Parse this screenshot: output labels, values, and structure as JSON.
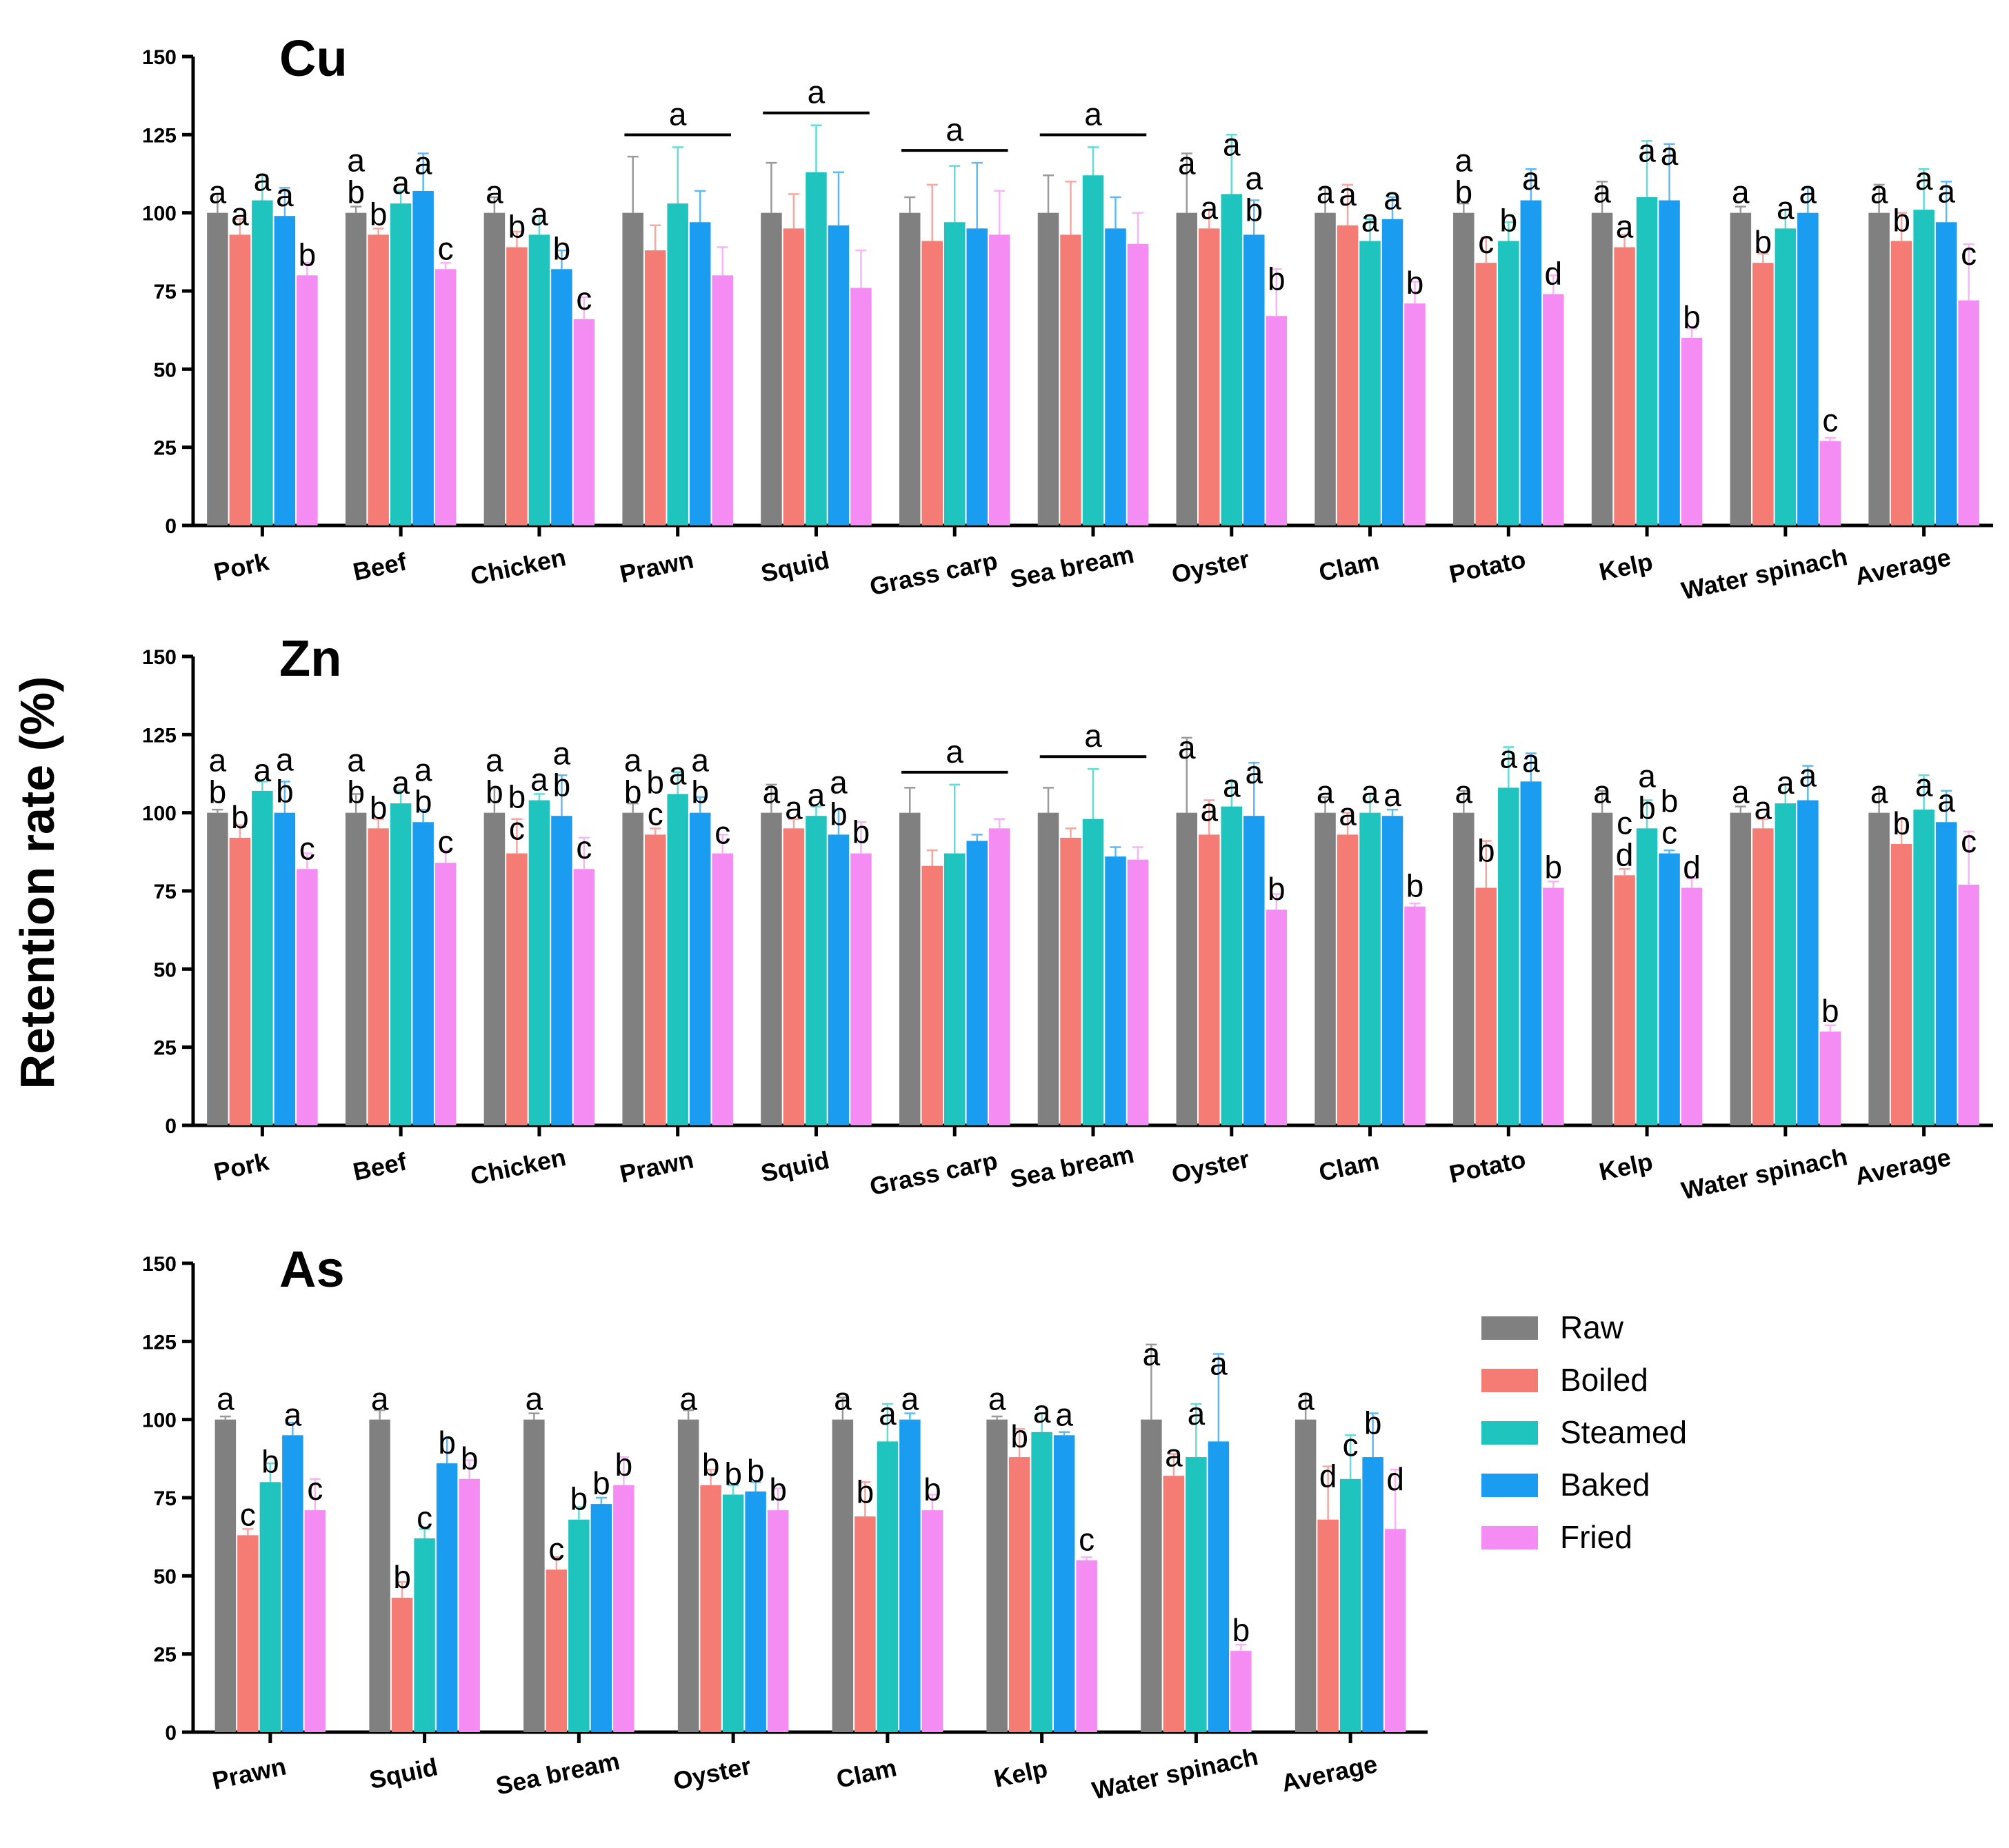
{
  "ylabel": "Retention rate (%)",
  "legend": [
    {
      "name": "Raw",
      "color": "#808080"
    },
    {
      "name": "Boiled",
      "color": "#f47c74"
    },
    {
      "name": "Steamed",
      "color": "#1fc4bf"
    },
    {
      "name": "Baked",
      "color": "#1a9cf0"
    },
    {
      "name": "Fried",
      "color": "#f58cf3"
    }
  ],
  "chart_data": [
    {
      "type": "bar",
      "title": "Cu",
      "ylim": [
        0,
        150
      ],
      "yticks": [
        "0",
        "25",
        "50",
        "75",
        "100",
        "125",
        "150"
      ],
      "categories": [
        "Pork",
        "Beef",
        "Chicken",
        "Prawn",
        "Squid",
        "Grass carp",
        "Sea bream",
        "Oyster",
        "Clam",
        "Potato",
        "Kelp",
        "Water spinach",
        "Average"
      ],
      "series": [
        {
          "name": "Raw",
          "values": [
            100,
            100,
            100,
            100,
            100,
            100,
            100,
            100,
            100,
            100,
            100,
            100,
            100
          ],
          "errors": [
            6,
            2,
            5,
            18,
            16,
            5,
            12,
            19,
            8,
            3,
            10,
            2,
            9
          ]
        },
        {
          "name": "Boiled",
          "values": [
            93,
            93,
            89,
            88,
            95,
            91,
            93,
            95,
            96,
            84,
            89,
            84,
            91
          ],
          "errors": [
            5,
            2,
            5,
            8,
            11,
            18,
            17,
            6,
            13,
            8,
            4,
            3,
            9
          ]
        },
        {
          "name": "Steamed",
          "values": [
            104,
            103,
            93,
            103,
            113,
            97,
            112,
            106,
            91,
            91,
            105,
            95,
            101
          ],
          "errors": [
            8,
            4,
            6,
            18,
            15,
            18,
            9,
            19,
            7,
            6,
            18,
            6,
            13
          ]
        },
        {
          "name": "Baked",
          "values": [
            99,
            107,
            82,
            97,
            96,
            95,
            95,
            93,
            98,
            104,
            104,
            100,
            97
          ],
          "errors": [
            9,
            12,
            6,
            10,
            17,
            21,
            10,
            11,
            7,
            10,
            18,
            8,
            13
          ]
        },
        {
          "name": "Fried",
          "values": [
            80,
            82,
            66,
            80,
            76,
            93,
            90,
            67,
            71,
            74,
            60,
            27,
            72
          ],
          "errors": [
            4,
            2,
            7,
            9,
            12,
            14,
            10,
            15,
            7,
            6,
            3,
            1,
            18
          ]
        }
      ],
      "significance": [
        [
          "a",
          "a",
          "a",
          "a",
          "b"
        ],
        [
          "ab",
          "b",
          "a",
          "a",
          "c"
        ],
        [
          "a",
          "b",
          "a",
          "b",
          "c"
        ],
        [
          "a",
          "a",
          "a",
          "a",
          "a"
        ],
        [
          "a",
          "a",
          "a",
          "a",
          "a"
        ],
        [
          "a",
          "a",
          "a",
          "a",
          "a"
        ],
        [
          "a",
          "a",
          "a",
          "a",
          "a"
        ],
        [
          "a",
          "a",
          "a",
          "ab",
          "b"
        ],
        [
          "a",
          "a",
          "a",
          "a",
          "b"
        ],
        [
          "ab",
          "c",
          "b",
          "a",
          "d"
        ],
        [
          "a",
          "a",
          "a",
          "a",
          "b"
        ],
        [
          "a",
          "b",
          "a",
          "a",
          "c"
        ],
        [
          "a",
          "b",
          "a",
          "a",
          "c"
        ]
      ]
    },
    {
      "type": "bar",
      "title": "Zn",
      "ylim": [
        0,
        150
      ],
      "yticks": [
        "0",
        "25",
        "50",
        "75",
        "100",
        "125",
        "150"
      ],
      "categories": [
        "Pork",
        "Beef",
        "Chicken",
        "Prawn",
        "Squid",
        "Grass carp",
        "Sea bream",
        "Oyster",
        "Clam",
        "Potato",
        "Kelp",
        "Water spinach",
        "Average"
      ],
      "series": [
        {
          "name": "Raw",
          "values": [
            100,
            100,
            100,
            100,
            100,
            100,
            100,
            100,
            100,
            100,
            100,
            100,
            100
          ],
          "errors": [
            1,
            6,
            8,
            3,
            9,
            8,
            8,
            24,
            5,
            7,
            7,
            2,
            8
          ]
        },
        {
          "name": "Boiled",
          "values": [
            92,
            95,
            87,
            93,
            95,
            83,
            92,
            93,
            93,
            76,
            80,
            95,
            90
          ],
          "errors": [
            4,
            3,
            11,
            2,
            3,
            5,
            3,
            11,
            7,
            15,
            2,
            3,
            8
          ]
        },
        {
          "name": "Steamed",
          "values": [
            107,
            103,
            104,
            106,
            99,
            87,
            98,
            102,
            100,
            108,
            95,
            103,
            101
          ],
          "errors": [
            3,
            4,
            2,
            7,
            3,
            22,
            16,
            8,
            6,
            13,
            9,
            6,
            11
          ]
        },
        {
          "name": "Baked",
          "values": [
            100,
            97,
            99,
            100,
            93,
            91,
            86,
            99,
            99,
            110,
            87,
            104,
            97
          ],
          "errors": [
            10,
            4,
            13,
            5,
            8,
            2,
            3,
            17,
            2,
            9,
            1,
            11,
            10
          ]
        },
        {
          "name": "Fried",
          "values": [
            82,
            84,
            82,
            87,
            87,
            95,
            85,
            69,
            70,
            76,
            76,
            30,
            77
          ],
          "errors": [
            5,
            4,
            10,
            6,
            10,
            3,
            4,
            5,
            1,
            2,
            3,
            2,
            17
          ]
        }
      ],
      "significance": [
        [
          "ab",
          "b",
          "a",
          "ab",
          "c"
        ],
        [
          "ab",
          "b",
          "a",
          "ab",
          "c"
        ],
        [
          "ab",
          "bc",
          "a",
          "ab",
          "c"
        ],
        [
          "ab",
          "bc",
          "a",
          "ab",
          "c"
        ],
        [
          "a",
          "a",
          "a",
          "ab",
          "b"
        ],
        [
          "a",
          "a",
          "a",
          "a",
          "a"
        ],
        [
          "a",
          "a",
          "a",
          "a",
          "a"
        ],
        [
          "a",
          "a",
          "a",
          "a",
          "b"
        ],
        [
          "a",
          "a",
          "a",
          "a",
          "b"
        ],
        [
          "a",
          "b",
          "a",
          "a",
          "b"
        ],
        [
          "a",
          "cd",
          "ab",
          "bc",
          "d"
        ],
        [
          "a",
          "a",
          "a",
          "a",
          "b"
        ],
        [
          "a",
          "b",
          "a",
          "a",
          "c"
        ]
      ]
    },
    {
      "type": "bar",
      "title": "As",
      "ylim": [
        0,
        150
      ],
      "yticks": [
        "0",
        "25",
        "50",
        "75",
        "100",
        "125",
        "150"
      ],
      "categories": [
        "Prawn",
        "Squid",
        "Sea bream",
        "Oyster",
        "Clam",
        "Kelp",
        "Water spinach",
        "Average"
      ],
      "series": [
        {
          "name": "Raw",
          "values": [
            100,
            100,
            100,
            100,
            100,
            100,
            100,
            100
          ],
          "errors": [
            1,
            3,
            2,
            3,
            7,
            1,
            24,
            8
          ]
        },
        {
          "name": "Boiled",
          "values": [
            63,
            43,
            52,
            79,
            69,
            88,
            82,
            68
          ],
          "errors": [
            2,
            5,
            4,
            5,
            11,
            9,
            7,
            17
          ]
        },
        {
          "name": "Steamed",
          "values": [
            80,
            62,
            68,
            76,
            93,
            96,
            88,
            81
          ],
          "errors": [
            6,
            3,
            4,
            3,
            12,
            6,
            17,
            14
          ]
        },
        {
          "name": "Baked",
          "values": [
            95,
            86,
            73,
            77,
            100,
            95,
            93,
            88
          ],
          "errors": [
            4,
            8,
            2,
            3,
            2,
            1,
            28,
            14
          ]
        },
        {
          "name": "Fried",
          "values": [
            71,
            81,
            79,
            71,
            71,
            55,
            26,
            65
          ],
          "errors": [
            10,
            6,
            9,
            7,
            5,
            1,
            2,
            19
          ]
        }
      ],
      "significance": [
        [
          "a",
          "c",
          "b",
          "a",
          "c"
        ],
        [
          "a",
          "b",
          "c",
          "b",
          "b"
        ],
        [
          "a",
          "c",
          "b",
          "b",
          "b"
        ],
        [
          "a",
          "b",
          "b",
          "b",
          "b"
        ],
        [
          "a",
          "b",
          "a",
          "a",
          "b"
        ],
        [
          "a",
          "b",
          "a",
          "a",
          "c"
        ],
        [
          "a",
          "a",
          "a",
          "a",
          "b"
        ],
        [
          "a",
          "d",
          "c",
          "b",
          "d"
        ]
      ]
    }
  ]
}
